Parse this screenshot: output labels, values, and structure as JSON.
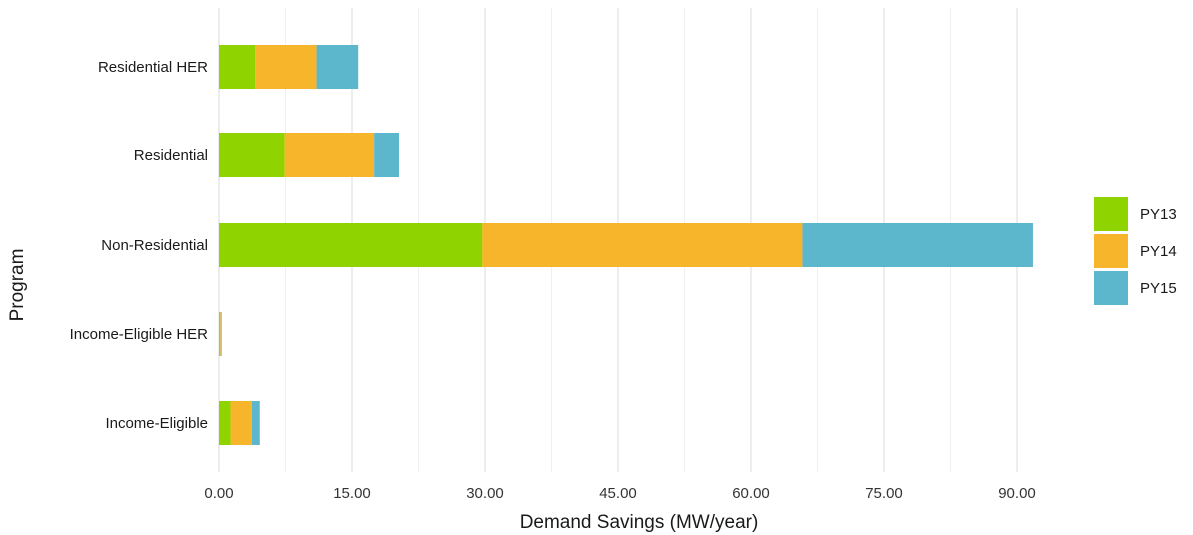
{
  "chart_data": {
    "type": "bar",
    "orientation": "horizontal",
    "stacked": true,
    "categories": [
      "Income-Eligible",
      "Income-Eligible HER",
      "Non-Residential",
      "Residential",
      "Residential HER"
    ],
    "series": [
      {
        "name": "PY13",
        "color": "#8fd400",
        "values": [
          1.3,
          0.1,
          29.7,
          7.4,
          4.1
        ]
      },
      {
        "name": "PY14",
        "color": "#f7b52c",
        "values": [
          2.4,
          0.1,
          36.1,
          10.1,
          6.9
        ]
      },
      {
        "name": "PY15",
        "color": "#5db7cc",
        "values": [
          0.9,
          0.1,
          26.0,
          2.8,
          4.7
        ]
      }
    ],
    "xlabel": "Demand Savings (MW/year)",
    "ylabel": "Program",
    "xlim": [
      0,
      93
    ],
    "xticks": [
      "0.00",
      "15.00",
      "30.00",
      "45.00",
      "60.00",
      "75.00",
      "90.00"
    ],
    "xtick_values": [
      0,
      15,
      30,
      45,
      60,
      75,
      90
    ],
    "grid": true,
    "legend_position": "right"
  }
}
